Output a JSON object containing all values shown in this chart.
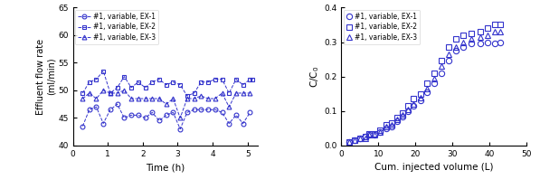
{
  "color": "#3333cc",
  "left_xlabel": "Time (h)",
  "left_ylabel": "Effluent flow rate\n(ml/min)",
  "left_xlim": [
    0,
    5.3
  ],
  "left_ylim": [
    40,
    65
  ],
  "left_yticks": [
    40,
    45,
    50,
    55,
    60,
    65
  ],
  "left_xticks": [
    0,
    1,
    2,
    3,
    4,
    5
  ],
  "right_xlabel": "Cum. injected volume (L)",
  "right_ylabel": "C/C$_0$",
  "right_xlim": [
    0,
    50
  ],
  "right_ylim": [
    0,
    0.4
  ],
  "right_yticks": [
    0.0,
    0.1,
    0.2,
    0.3,
    0.4
  ],
  "right_xticks": [
    0,
    10,
    20,
    30,
    40,
    50
  ],
  "legend_labels": [
    "#1, variable, EX-1",
    "#1, variable, EX-2",
    "#1, variable, EX-3"
  ],
  "ex1_time": [
    0.28,
    0.47,
    0.67,
    0.87,
    1.07,
    1.27,
    1.47,
    1.67,
    1.87,
    2.07,
    2.27,
    2.47,
    2.67,
    2.87,
    3.07,
    3.27,
    3.47,
    3.67,
    3.87,
    4.07,
    4.27,
    4.47,
    4.67,
    4.87,
    5.07
  ],
  "ex1_flow": [
    43.5,
    46.5,
    47.0,
    44.0,
    46.5,
    47.5,
    45.0,
    45.5,
    45.5,
    45.0,
    46.0,
    44.5,
    45.5,
    46.0,
    43.0,
    46.0,
    46.5,
    46.5,
    46.5,
    46.5,
    46.0,
    44.0,
    45.5,
    44.0,
    46.0
  ],
  "ex2_time": [
    0.28,
    0.47,
    0.67,
    0.87,
    1.07,
    1.27,
    1.47,
    1.67,
    1.87,
    2.07,
    2.27,
    2.47,
    2.67,
    2.87,
    3.07,
    3.27,
    3.47,
    3.67,
    3.87,
    4.07,
    4.27,
    4.47,
    4.67,
    4.87,
    5.07,
    5.15
  ],
  "ex2_flow": [
    49.5,
    51.5,
    52.0,
    53.5,
    49.5,
    50.5,
    52.5,
    50.5,
    51.5,
    50.5,
    51.5,
    52.0,
    51.0,
    51.5,
    51.0,
    49.0,
    49.5,
    51.5,
    51.5,
    52.0,
    52.0,
    49.5,
    52.0,
    51.0,
    52.0,
    52.0
  ],
  "ex3_time": [
    0.28,
    0.47,
    0.67,
    0.87,
    1.07,
    1.27,
    1.47,
    1.67,
    1.87,
    2.07,
    2.27,
    2.47,
    2.67,
    2.87,
    3.07,
    3.27,
    3.47,
    3.67,
    3.87,
    4.07,
    4.27,
    4.47,
    4.67,
    4.87,
    5.07
  ],
  "ex3_flow": [
    48.5,
    49.5,
    48.5,
    50.0,
    49.5,
    49.5,
    50.0,
    48.5,
    48.5,
    48.5,
    48.5,
    48.5,
    47.5,
    48.5,
    45.0,
    48.5,
    48.5,
    49.0,
    48.5,
    48.5,
    49.5,
    47.0,
    49.5,
    49.5,
    49.5
  ],
  "r_ex1_vol": [
    2.0,
    3.5,
    5.0,
    6.5,
    7.5,
    9.0,
    10.5,
    12.0,
    13.5,
    15.0,
    16.5,
    18.0,
    19.5,
    21.5,
    23.0,
    25.0,
    27.0,
    29.0,
    31.0,
    33.0,
    35.0,
    37.5,
    39.5,
    41.5,
    43.0
  ],
  "r_ex1_cc0": [
    0.01,
    0.015,
    0.02,
    0.025,
    0.03,
    0.03,
    0.04,
    0.05,
    0.055,
    0.07,
    0.085,
    0.1,
    0.115,
    0.13,
    0.155,
    0.18,
    0.21,
    0.245,
    0.275,
    0.285,
    0.295,
    0.295,
    0.3,
    0.295,
    0.3
  ],
  "r_ex2_vol": [
    2.0,
    3.5,
    5.0,
    6.5,
    7.5,
    9.0,
    10.5,
    12.0,
    13.5,
    15.0,
    16.5,
    18.0,
    19.5,
    21.5,
    23.0,
    25.0,
    27.0,
    29.0,
    31.0,
    33.0,
    35.0,
    37.5,
    39.5,
    41.5,
    43.0
  ],
  "r_ex2_cc0": [
    0.01,
    0.015,
    0.02,
    0.025,
    0.035,
    0.035,
    0.045,
    0.06,
    0.065,
    0.08,
    0.095,
    0.115,
    0.135,
    0.15,
    0.18,
    0.21,
    0.245,
    0.285,
    0.31,
    0.32,
    0.325,
    0.33,
    0.34,
    0.35,
    0.35
  ],
  "r_ex3_vol": [
    2.0,
    3.5,
    5.0,
    6.5,
    7.5,
    9.0,
    10.5,
    12.0,
    13.5,
    15.0,
    16.5,
    18.0,
    19.5,
    21.5,
    23.0,
    25.0,
    27.0,
    29.0,
    31.0,
    33.0,
    35.0,
    37.5,
    39.5,
    41.5,
    43.0
  ],
  "r_ex3_cc0": [
    0.01,
    0.015,
    0.02,
    0.02,
    0.03,
    0.03,
    0.04,
    0.055,
    0.06,
    0.075,
    0.09,
    0.105,
    0.12,
    0.14,
    0.165,
    0.195,
    0.23,
    0.265,
    0.285,
    0.3,
    0.31,
    0.315,
    0.32,
    0.33,
    0.33
  ]
}
